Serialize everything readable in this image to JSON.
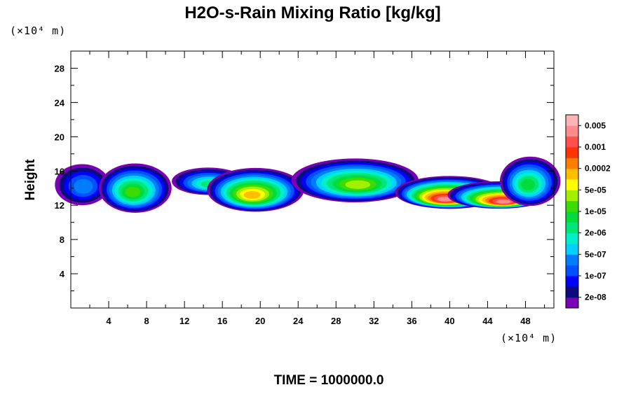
{
  "chart_data": {
    "type": "heatmap",
    "title": "H2O-s-Rain Mixing Ratio [kg/kg]",
    "ylabel": "Height",
    "xlabel": "",
    "x_unit": "(×10⁴ m)",
    "y_unit": "(×10⁴ m)",
    "footer": "TIME = 1000000.0",
    "xlim": [
      0,
      51
    ],
    "ylim": [
      0,
      30
    ],
    "x_ticks": [
      "4",
      "8",
      "12",
      "16",
      "20",
      "24",
      "28",
      "32",
      "36",
      "40",
      "44",
      "48"
    ],
    "y_ticks": [
      "4",
      "8",
      "12",
      "16",
      "20",
      "24",
      "28"
    ],
    "x_tick_values": [
      4,
      8,
      12,
      16,
      20,
      24,
      28,
      32,
      36,
      40,
      44,
      48
    ],
    "y_tick_values": [
      4,
      8,
      12,
      16,
      20,
      24,
      28
    ],
    "colorbar": {
      "labels": [
        "0.005",
        "0.001",
        "0.0002",
        "5e-05",
        "1e-05",
        "2e-06",
        "5e-07",
        "1e-07",
        "2e-08"
      ],
      "colors": [
        "#7a00b4",
        "#0b0a7f",
        "#0000ff",
        "#0050ff",
        "#007dff",
        "#00d2ff",
        "#00f0c8",
        "#00e678",
        "#00dc3c",
        "#3cdc00",
        "#a0f000",
        "#ffff00",
        "#ffbe00",
        "#ff7d00",
        "#ff3200",
        "#ff4f4f",
        "#ff8c8c",
        "#ffb4b4"
      ]
    },
    "features": [
      {
        "type": "cloud",
        "x": 1.2,
        "y": 14.4,
        "width": 1.8,
        "height": 1.5,
        "max_level": 4
      },
      {
        "type": "cloud",
        "x": 6.8,
        "y": 14.0,
        "width": 2.4,
        "height": 1.8,
        "max_level": 9
      },
      {
        "type": "cloud",
        "x": 14.5,
        "y": 14.8,
        "width": 2.4,
        "height": 1.0,
        "max_level": 7
      },
      {
        "type": "cloud",
        "x": 19.5,
        "y": 13.8,
        "width": 3.2,
        "height": 1.6,
        "max_level": 12
      },
      {
        "type": "cloud",
        "x": 30.0,
        "y": 14.9,
        "width": 4.2,
        "height": 1.6,
        "max_level": 10
      },
      {
        "type": "cloud",
        "x": 40.0,
        "y": 13.5,
        "width": 3.6,
        "height": 1.2,
        "max_level": 16
      },
      {
        "type": "cloud",
        "x": 45.2,
        "y": 13.2,
        "width": 3.4,
        "height": 1.0,
        "max_level": 16
      },
      {
        "type": "cloud",
        "x": 48.5,
        "y": 14.8,
        "width": 2.0,
        "height": 1.8,
        "max_level": 8
      }
    ]
  }
}
